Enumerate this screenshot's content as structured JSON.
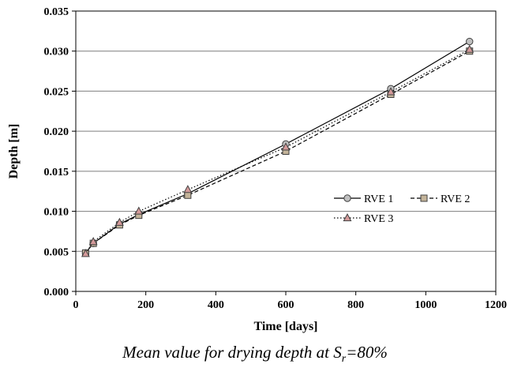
{
  "chart_data": {
    "type": "line",
    "title": "",
    "xlabel": "Time [days]",
    "ylabel": "Depth [m]",
    "xlim": [
      0,
      1200
    ],
    "ylim": [
      0,
      0.035
    ],
    "xticks": [
      0,
      200,
      400,
      600,
      800,
      1000,
      1200
    ],
    "yticks": [
      0.0,
      0.005,
      0.01,
      0.015,
      0.02,
      0.025,
      0.03,
      0.035
    ],
    "ytick_labels": [
      "0.000",
      "0.005",
      "0.010",
      "0.015",
      "0.020",
      "0.025",
      "0.030",
      "0.035"
    ],
    "grid": "horizontal",
    "legend_position": "center-right",
    "series": [
      {
        "name": "RVE 1",
        "line": "solid",
        "marker": "circle",
        "marker_color": "#c0c0c0",
        "x": [
          28,
          50,
          125,
          180,
          320,
          600,
          900,
          1125
        ],
        "y": [
          0.0048,
          0.006,
          0.0084,
          0.0096,
          0.0122,
          0.0184,
          0.0253,
          0.0312
        ]
      },
      {
        "name": "RVE 2",
        "line": "dashed",
        "marker": "square",
        "marker_color": "#c4b49a",
        "x": [
          28,
          50,
          125,
          180,
          320,
          600,
          900,
          1125
        ],
        "y": [
          0.0048,
          0.006,
          0.0083,
          0.0095,
          0.012,
          0.0175,
          0.0246,
          0.03
        ]
      },
      {
        "name": "RVE 3",
        "line": "dotted",
        "marker": "triangle",
        "marker_color": "#d49a9a",
        "x": [
          28,
          50,
          125,
          180,
          320,
          600,
          900,
          1125
        ],
        "y": [
          0.0047,
          0.0062,
          0.0086,
          0.01,
          0.0127,
          0.018,
          0.0249,
          0.0302
        ]
      }
    ]
  },
  "caption": {
    "prefix": "Mean value for drying depth at S",
    "subscript": "r",
    "suffix": "=80%"
  }
}
